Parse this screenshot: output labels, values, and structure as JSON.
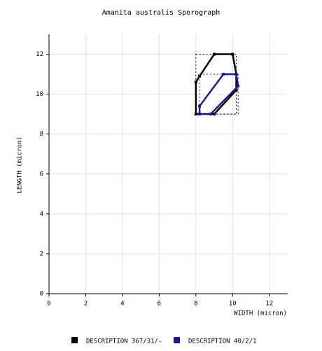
{
  "chart_data": {
    "type": "line",
    "title": "Amanita australis Sporograph",
    "x_label": "WIDTH (micron)",
    "y_label": "LENGTH (micron)",
    "xlim": [
      0,
      13
    ],
    "ylim": [
      0,
      13
    ],
    "xticks": [
      0,
      2,
      4,
      6,
      8,
      10,
      12
    ],
    "yticks": [
      0,
      2,
      4,
      6,
      8,
      10,
      12
    ],
    "grid": true,
    "series": [
      {
        "name": "DESCRIPTION 367/31/-",
        "color": "#000000",
        "x": [
          8,
          8,
          8.2,
          9,
          10,
          10.2,
          10.2,
          9
        ],
        "y": [
          9,
          10.6,
          10.9,
          12,
          12,
          11,
          10.2,
          9
        ]
      },
      {
        "name": "DESCRIPTION 40/2/1",
        "color": "#1a1a8c",
        "x": [
          8.2,
          8.2,
          9.5,
          10.2,
          10.3,
          8.8
        ],
        "y": [
          9,
          9.4,
          11,
          11,
          10.4,
          9
        ]
      }
    ]
  }
}
